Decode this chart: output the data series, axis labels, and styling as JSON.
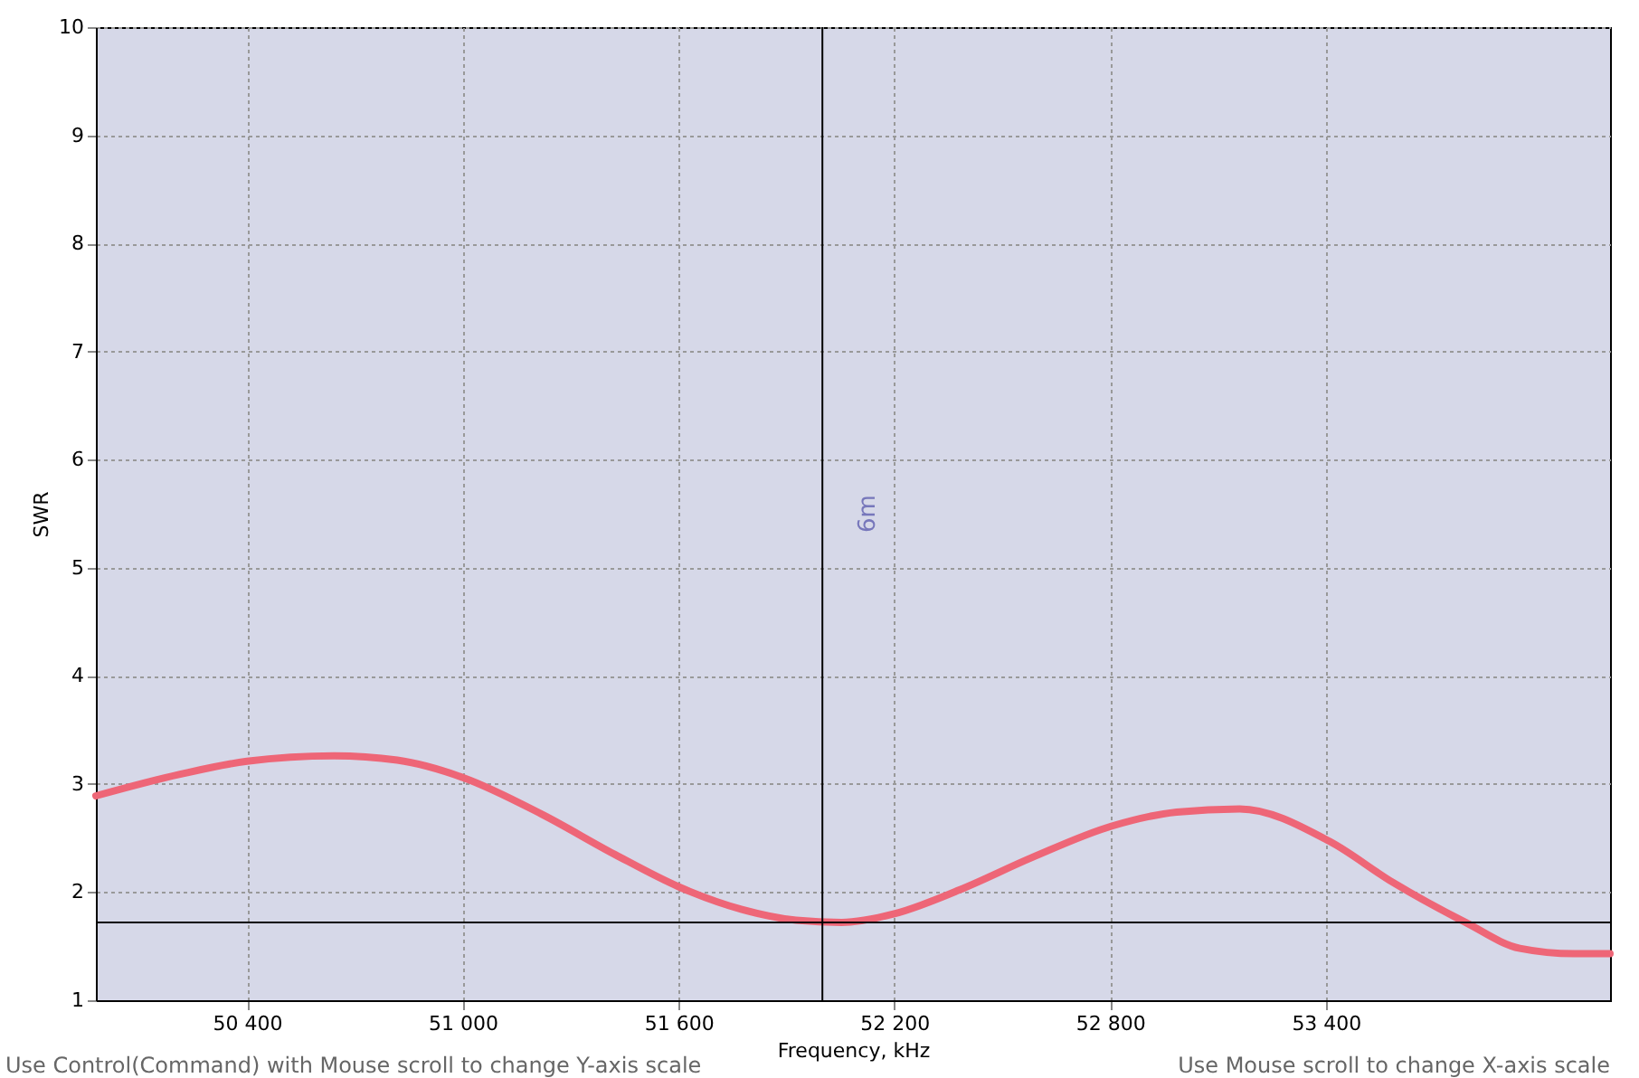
{
  "chart_data": {
    "type": "line",
    "xlabel": "Frequency, kHz",
    "ylabel": "SWR",
    "x": [
      49980,
      50214,
      50400,
      50642,
      50818,
      51000,
      51220,
      51422,
      51600,
      51776,
      51927,
      52053,
      52200,
      52381,
      52583,
      52804,
      52985,
      53160,
      53410,
      53586,
      53788,
      53939,
      54090,
      54190
    ],
    "series": [
      {
        "color": "#ee6677",
        "values": [
          2.89,
          3.09,
          3.21,
          3.26,
          3.22,
          3.06,
          2.72,
          2.35,
          2.05,
          1.84,
          1.74,
          1.72,
          1.8,
          2.02,
          2.32,
          2.61,
          2.74,
          2.77,
          2.47,
          2.09,
          1.72,
          1.48,
          1.43,
          1.43
        ]
      }
    ],
    "xlim": [
      49980,
      54190
    ],
    "xticks": [
      {
        "value": 50400,
        "label": "50 400"
      },
      {
        "value": 51000,
        "label": "51 000"
      },
      {
        "value": 51600,
        "label": "51 600"
      },
      {
        "value": 52200,
        "label": "52 200"
      },
      {
        "value": 52800,
        "label": "52 800"
      },
      {
        "value": 53400,
        "label": "53 400"
      }
    ],
    "ylim": [
      1,
      10
    ],
    "yticks": [
      1,
      2,
      3,
      4,
      5,
      6,
      7,
      8,
      9,
      10
    ],
    "grid": true,
    "marker": "none",
    "line_style": "solid",
    "ref_lines": [
      {
        "axis": "x",
        "value": 52000,
        "label": "6m",
        "color": "#000000"
      },
      {
        "axis": "y",
        "value": 1.72,
        "color": "#000000"
      }
    ],
    "annotations": [
      "Use Control(Command) with Mouse scroll to change Y-axis scale",
      "Use Mouse scroll to change X-axis scale"
    ]
  }
}
